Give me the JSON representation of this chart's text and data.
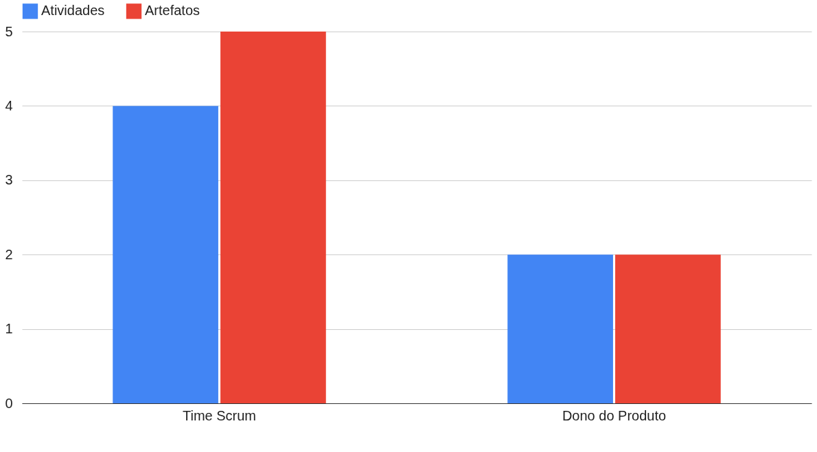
{
  "chart_data": {
    "type": "bar",
    "categories": [
      "Time Scrum",
      "Dono do Produto"
    ],
    "series": [
      {
        "name": "Atividades",
        "color": "#4285f4",
        "values": [
          4,
          2
        ]
      },
      {
        "name": "Artefatos",
        "color": "#ea4335",
        "values": [
          5,
          2
        ]
      }
    ],
    "ylim": [
      0,
      5
    ],
    "yticks": [
      0,
      1,
      2,
      3,
      4,
      5
    ],
    "grid": "y",
    "legend": "top"
  }
}
